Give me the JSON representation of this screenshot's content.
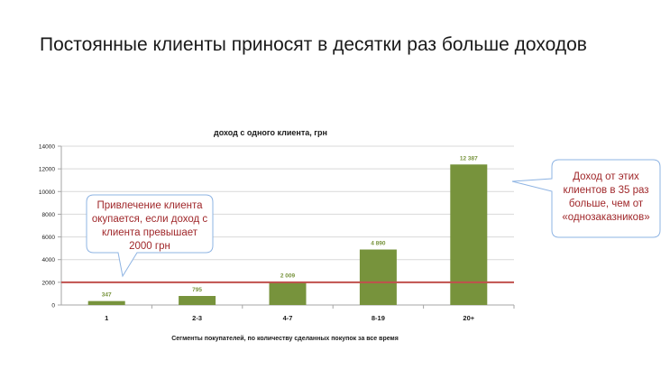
{
  "slide": {
    "title": "Постоянные клиенты приносят в десятки раз больше доходов"
  },
  "chart_data": {
    "type": "bar",
    "title": "доход с одного клиента, грн",
    "xlabel": "Сегменты покупателей, по количеству сделанных покупок за все время",
    "ylabel": "",
    "categories": [
      "1",
      "2-3",
      "4-7",
      "8-19",
      "20+"
    ],
    "values": [
      347,
      795,
      2009,
      4890,
      12387
    ],
    "value_labels": [
      "347",
      "795",
      "2 009",
      "4 890",
      "12 387"
    ],
    "ylim": [
      0,
      14000
    ],
    "yticks": [
      0,
      2000,
      4000,
      6000,
      8000,
      10000,
      12000,
      14000
    ],
    "grid": true,
    "legend": "none",
    "reference_line": {
      "value": 2000
    },
    "annotations": [
      {
        "text": "Привлечение клиента окупается, если доход с клиента превышает 2000 грн"
      },
      {
        "text": "Доход от этих клиентов в 35 раз больше, чем от «однозаказников»"
      }
    ],
    "colors": {
      "bar": "#77933c",
      "value_label": "#77933c",
      "reference_line": "#c0504d",
      "grid": "#d9d9d9",
      "callout_border": "#8eb4e3",
      "callout_text": "#a0282b"
    }
  }
}
